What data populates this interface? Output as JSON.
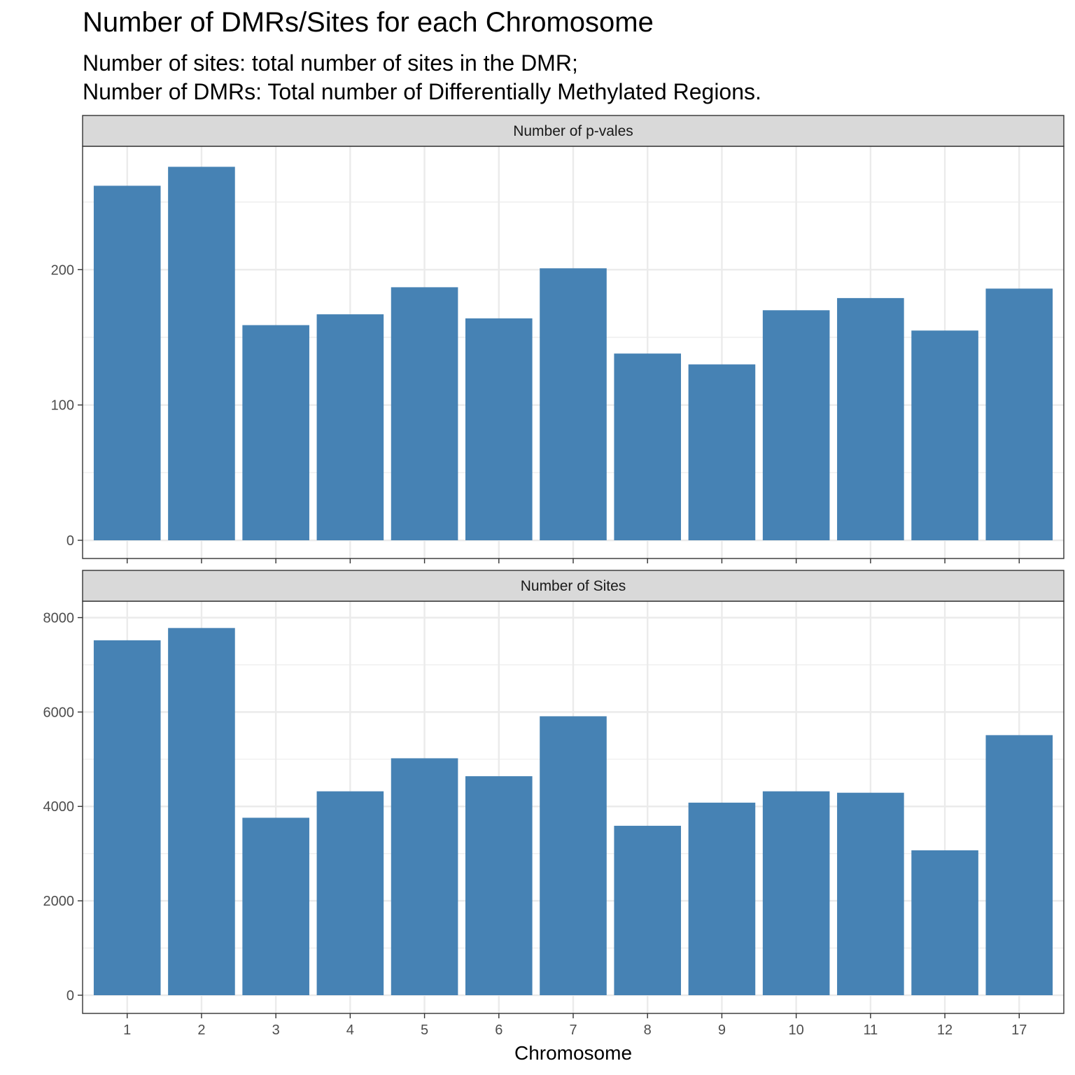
{
  "header": {
    "title": "Number of DMRs/Sites for each Chromosome",
    "subtitle_line1": "Number of sites: total number of sites in the DMR;",
    "subtitle_line2": "Number of DMRs: Total number of Differentially Methylated Regions."
  },
  "colors": {
    "bar": "#4682B4",
    "strip_background": "#D9D9D9",
    "panel_border": "#333333",
    "grid": "#EBEBEB"
  },
  "chart_data": {
    "type": "bar",
    "xlabel": "Chromosome",
    "categories": [
      "1",
      "2",
      "3",
      "4",
      "5",
      "6",
      "7",
      "8",
      "9",
      "10",
      "11",
      "12",
      "17"
    ],
    "grid": true,
    "facets": [
      {
        "strip": "Number of p-vales",
        "ylim": [
          0,
          286
        ],
        "yticks": [
          0,
          100,
          200
        ],
        "values": [
          262,
          276,
          159,
          167,
          187,
          164,
          201,
          138,
          130,
          170,
          179,
          155,
          186
        ]
      },
      {
        "strip": "Number of Sites",
        "ylim": [
          0,
          8200
        ],
        "yticks": [
          0,
          2000,
          4000,
          6000,
          8000
        ],
        "values": [
          7520,
          7780,
          3760,
          4320,
          5020,
          4640,
          5910,
          3590,
          4080,
          4320,
          4290,
          3070,
          5510
        ]
      }
    ]
  }
}
